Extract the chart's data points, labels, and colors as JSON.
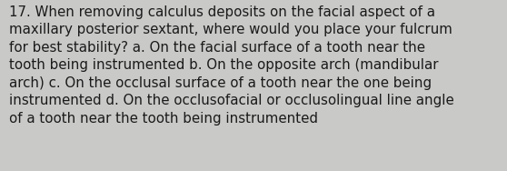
{
  "lines": [
    "17. When removing calculus deposits on the facial aspect of a",
    "maxillary posterior sextant, where would you place your fulcrum",
    "for best stability? a. On the facial surface of a tooth near the",
    "tooth being instrumented b. On the opposite arch (mandibular",
    "arch) c. On the occlusal surface of a tooth near the one being",
    "instrumented d. On the occlusofacial or occlusolingual line angle",
    "of a tooth near the tooth being instrumented"
  ],
  "background_color": "#c9cac8",
  "text_color": "#1a1a1a",
  "font_size": 10.8,
  "font_family": "DejaVu Sans"
}
